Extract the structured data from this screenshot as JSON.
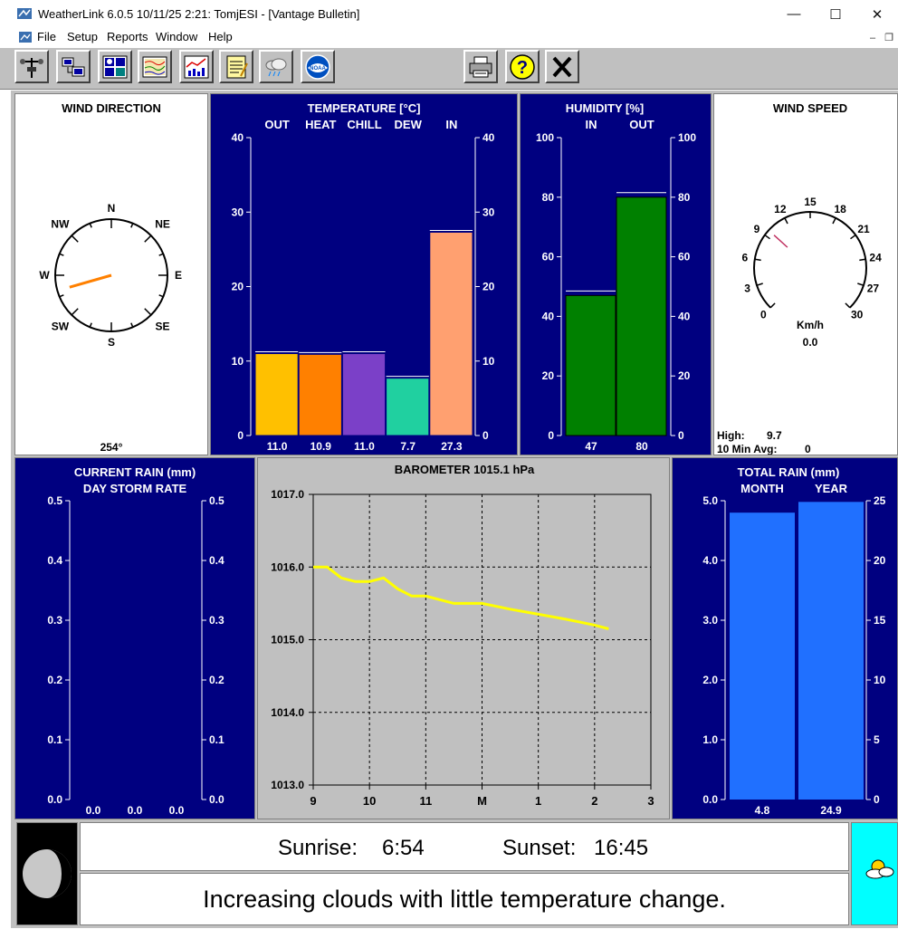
{
  "window": {
    "title": "WeatherLink 6.0.5  10/11/25   2:21: TomjESI - [Vantage Bulletin]",
    "minimize_glyph": "—",
    "maximize_glyph": "☐",
    "close_glyph": "✕"
  },
  "menu": {
    "items": [
      "File",
      "Setup",
      "Reports",
      "Window",
      "Help"
    ],
    "mdi_minimize": "–",
    "mdi_restore": "❐"
  },
  "toolbar": {
    "icons": [
      "station-icon",
      "download-icon",
      "bulletin-icon",
      "strip-chart-icon",
      "plot-icon",
      "notes-icon",
      "weather-clouds-icon",
      "noaa-icon",
      "print-icon",
      "help-icon",
      "exit-icon"
    ],
    "help_glyph": "?",
    "noaa_text": "NOAA"
  },
  "wind_direction": {
    "title": "WIND DIRECTION",
    "compass": [
      "N",
      "NE",
      "E",
      "SE",
      "S",
      "SW",
      "W",
      "NW"
    ],
    "degrees": 254,
    "value_label": "254°"
  },
  "temperature": {
    "title": "TEMPERATURE  [°C]",
    "categories": [
      "OUT",
      "HEAT",
      "CHILL",
      "DEW",
      "IN"
    ],
    "values": [
      11.0,
      10.9,
      11.0,
      7.7,
      27.3
    ],
    "value_labels": [
      "11.0",
      "10.9",
      "11.0",
      "7.7",
      "27.3"
    ],
    "colors": [
      "#ffc000",
      "#ff8000",
      "#7b40c8",
      "#20d0a0",
      "#ffa070"
    ],
    "ylim": [
      0,
      40
    ],
    "ticks": [
      "0",
      "10",
      "20",
      "30",
      "40"
    ]
  },
  "humidity": {
    "title": "HUMIDITY  [%]",
    "categories": [
      "IN",
      "OUT"
    ],
    "values": [
      47,
      80
    ],
    "value_labels": [
      "47",
      "80"
    ],
    "ylim": [
      0,
      100
    ],
    "ticks": [
      "0",
      "20",
      "40",
      "60",
      "80",
      "100"
    ]
  },
  "wind_speed": {
    "title": "WIND SPEED",
    "scale": [
      "0",
      "3",
      "6",
      "9",
      "12",
      "15",
      "18",
      "21",
      "24",
      "27",
      "30"
    ],
    "unit": "Km/h",
    "value": 0.0,
    "value_label": "0.0",
    "high_label": "High:",
    "high_value": "9.7",
    "high": 9.7,
    "avg_label": "10 Min Avg:",
    "avg_value": "0"
  },
  "current_rain": {
    "title": "CURRENT RAIN  (mm)",
    "subtitle": "DAY  STORM RATE",
    "ticks": [
      "0.0",
      "0.1",
      "0.2",
      "0.3",
      "0.4",
      "0.5"
    ],
    "values": [
      0.0,
      0.0,
      0.0
    ],
    "value_labels": [
      "0.0",
      "0.0",
      "0.0"
    ],
    "ylim": [
      0,
      0.5
    ]
  },
  "barometer": {
    "title": "BAROMETER 1015.1 hPa",
    "ticks": [
      "1013.0",
      "1014.0",
      "1015.0",
      "1016.0",
      "1017.0"
    ],
    "xticks": [
      "9",
      "10",
      "11",
      "M",
      "1",
      "2",
      "3"
    ]
  },
  "chart_data": {
    "type": "line",
    "title": "BAROMETER 1015.1 hPa",
    "ylim": [
      1013.0,
      1017.0
    ],
    "x_categories": [
      "9",
      "10",
      "11",
      "M",
      "1",
      "2",
      "3"
    ],
    "grid": true,
    "series": [
      {
        "x": [
          9.0,
          9.25,
          9.5,
          9.75,
          10.0,
          10.25,
          10.5,
          10.75,
          11.0,
          11.5,
          12.0,
          12.5,
          13.0,
          13.5,
          14.0,
          14.25
        ],
        "y": [
          1016.0,
          1016.0,
          1015.85,
          1015.8,
          1015.8,
          1015.85,
          1015.7,
          1015.6,
          1015.6,
          1015.5,
          1015.5,
          1015.42,
          1015.35,
          1015.28,
          1015.2,
          1015.15
        ],
        "color": "#ffff00"
      }
    ]
  },
  "total_rain": {
    "title": "TOTAL RAIN  (mm)",
    "categories": [
      "MONTH",
      "YEAR"
    ],
    "values": [
      4.8,
      24.9
    ],
    "value_labels": [
      "4.8",
      "24.9"
    ],
    "left_ticks": [
      "0.0",
      "1.0",
      "2.0",
      "3.0",
      "4.0",
      "5.0"
    ],
    "right_ticks": [
      "0",
      "5",
      "10",
      "15",
      "20",
      "25"
    ],
    "left_max": 5.0,
    "right_max": 25
  },
  "forecast": {
    "sunrise_label": "Sunrise:",
    "sunrise": "6:54",
    "sunset_label": "Sunset:",
    "sunset": "16:45",
    "text": "Increasing clouds with little temperature change.",
    "forecast_icon": "partly-cloudy-icon",
    "moon_icon": "moon-phase-icon"
  }
}
